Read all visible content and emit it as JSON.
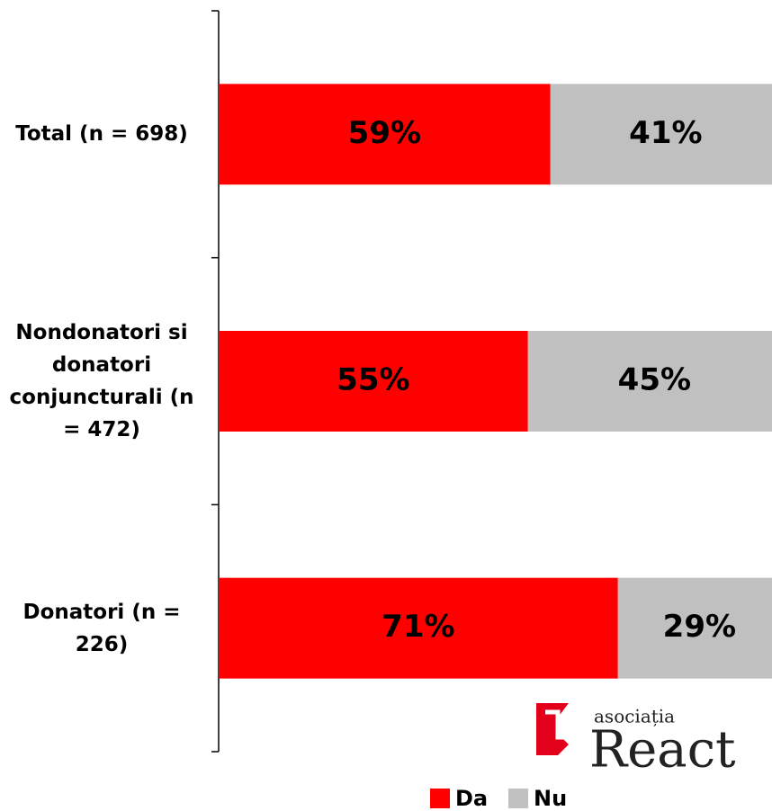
{
  "chart_data": {
    "type": "stacked_barh",
    "categories": [
      "Total (n = 698)",
      "Nondonatori si donatori conjuncturali (n = 472)",
      "Donatori (n = 226)"
    ],
    "series": [
      {
        "name": "Da",
        "color": "#ff0000",
        "values": [
          59,
          55,
          71
        ],
        "value_labels": [
          "59%",
          "55%",
          "71%"
        ]
      },
      {
        "name": "Nu",
        "color": "#c0c0c0",
        "values": [
          41,
          45,
          29
        ],
        "value_labels": [
          "41%",
          "45%",
          "29%"
        ]
      }
    ],
    "xlim": [
      0,
      100
    ],
    "legend": "bottom"
  },
  "logo": {
    "small": "asociația",
    "big": "React"
  }
}
